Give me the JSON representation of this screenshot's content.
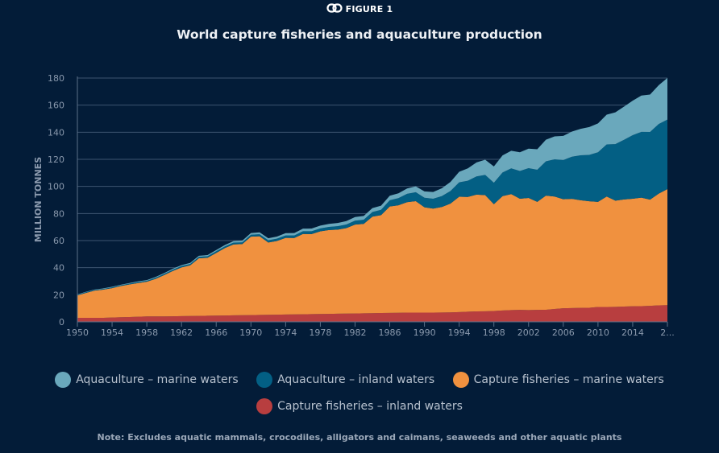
{
  "figure_label": "FIGURE 1",
  "figure_icon": "link-icon",
  "chart_data": {
    "type": "area",
    "stacked": true,
    "title": "World capture fisheries and aquaculture production",
    "xlabel": "",
    "ylabel": "MILLION TONNES",
    "ylim": [
      0,
      180
    ],
    "yticks": [
      "0",
      "20",
      "40",
      "60",
      "80",
      "100",
      "120",
      "140",
      "160",
      "180"
    ],
    "xlim": [
      1950,
      2018
    ],
    "xticks": [
      "1950",
      "1954",
      "1958",
      "1962",
      "1966",
      "1970",
      "1974",
      "1978",
      "1982",
      "1986",
      "1990",
      "1994",
      "1998",
      "2002",
      "2006",
      "2010",
      "2014",
      "2..."
    ],
    "grid": true,
    "legend_position": "bottom",
    "x": [
      1950,
      1951,
      1952,
      1953,
      1954,
      1955,
      1956,
      1957,
      1958,
      1959,
      1960,
      1961,
      1962,
      1963,
      1964,
      1965,
      1966,
      1967,
      1968,
      1969,
      1970,
      1971,
      1972,
      1973,
      1974,
      1975,
      1976,
      1977,
      1978,
      1979,
      1980,
      1981,
      1982,
      1983,
      1984,
      1985,
      1986,
      1987,
      1988,
      1989,
      1990,
      1991,
      1992,
      1993,
      1994,
      1995,
      1996,
      1997,
      1998,
      1999,
      2000,
      2001,
      2002,
      2003,
      2004,
      2005,
      2006,
      2007,
      2008,
      2009,
      2010,
      2011,
      2012,
      2013,
      2014,
      2015,
      2016,
      2017,
      2018
    ],
    "series": [
      {
        "name": "Capture fisheries – inland waters",
        "color": "#b83e3f",
        "values": [
          3,
          3,
          3,
          3,
          3.2,
          3.4,
          3.6,
          3.8,
          4,
          4,
          4,
          4.1,
          4.2,
          4.3,
          4.4,
          4.5,
          4.6,
          4.7,
          4.8,
          4.9,
          5,
          5.1,
          5.2,
          5.3,
          5.4,
          5.5,
          5.6,
          5.7,
          5.8,
          5.9,
          6,
          6.1,
          6.2,
          6.3,
          6.4,
          6.5,
          6.6,
          6.7,
          6.8,
          6.8,
          6.8,
          6.8,
          6.9,
          7,
          7.2,
          7.5,
          7.7,
          7.8,
          8,
          8.4,
          8.7,
          8.8,
          8.7,
          8.8,
          8.9,
          9.5,
          10,
          10.2,
          10.3,
          10.4,
          11,
          11,
          11.1,
          11.3,
          11.5,
          11.6,
          11.8,
          12.2,
          12.3
        ]
      },
      {
        "name": "Capture fisheries – marine waters",
        "color": "#f0913f",
        "values": [
          16.5,
          18.4,
          20.1,
          20.8,
          21.7,
          23,
          24,
          24.9,
          25.6,
          27.7,
          30.5,
          33.5,
          36,
          37.4,
          42.5,
          42.8,
          46.3,
          49.8,
          52.4,
          52.5,
          57.9,
          58.1,
          53.4,
          54.4,
          56.6,
          56.4,
          59.3,
          59.1,
          61,
          61.9,
          62.1,
          63.1,
          65.6,
          66,
          71.3,
          72.3,
          78.6,
          79.4,
          81.6,
          82.3,
          77.8,
          76.8,
          77.9,
          80.3,
          85.2,
          84.7,
          86.2,
          85.8,
          78.9,
          84.4,
          85.6,
          82.1,
          82.8,
          79.8,
          84.3,
          83,
          80.5,
          80.6,
          79.5,
          78.6,
          77.6,
          81.5,
          78.4,
          79.1,
          79.4,
          80.1,
          78.4,
          82.5,
          85.7
        ]
      },
      {
        "name": "Aquaculture – inland waters",
        "color": "#035f84",
        "values": [
          0.5,
          0.5,
          0.5,
          0.5,
          0.6,
          0.6,
          0.6,
          0.7,
          0.7,
          0.8,
          0.9,
          0.9,
          1,
          1,
          1.1,
          1.1,
          1.2,
          1.2,
          1.3,
          1.3,
          1.4,
          1.5,
          1.6,
          1.7,
          1.8,
          1.9,
          2,
          2.1,
          2.2,
          2.3,
          2.5,
          2.7,
          2.9,
          3.1,
          3.4,
          3.9,
          4.6,
          5.2,
          6.1,
          6.6,
          7,
          7.3,
          8,
          9.3,
          10.6,
          12,
          13.5,
          14.9,
          15.8,
          17.5,
          19,
          20.5,
          22,
          23.7,
          25.3,
          27.5,
          29,
          31.1,
          33.2,
          34.3,
          36.6,
          38.5,
          41.7,
          44,
          46.9,
          48.6,
          50,
          51.4,
          51.3
        ]
      },
      {
        "name": "Aquaculture – marine waters",
        "color": "#6aa8bc",
        "values": [
          0.3,
          0.3,
          0.3,
          0.4,
          0.4,
          0.4,
          0.5,
          0.5,
          0.5,
          0.6,
          0.6,
          0.7,
          0.7,
          0.8,
          0.8,
          0.9,
          0.9,
          1,
          1.1,
          1.2,
          1.3,
          1.4,
          1.5,
          1.6,
          1.7,
          1.8,
          1.9,
          2,
          2.1,
          2.2,
          2.4,
          2.5,
          2.7,
          2.8,
          2.9,
          3.1,
          3.3,
          3.6,
          4,
          4.3,
          4.7,
          5,
          5.8,
          6.7,
          7.8,
          9.1,
          10.3,
          11.2,
          12,
          12.6,
          13,
          13.8,
          14.4,
          15.1,
          16,
          16.9,
          17.8,
          18.6,
          19.5,
          20.5,
          21.3,
          22,
          23.5,
          24.5,
          25.5,
          26.8,
          27.6,
          28.6,
          30.8
        ]
      }
    ]
  },
  "legend": [
    {
      "label": "Aquaculture – marine waters",
      "color": "#6aa8bc"
    },
    {
      "label": "Aquaculture – inland waters",
      "color": "#035f84"
    },
    {
      "label": "Capture fisheries – marine waters",
      "color": "#f0913f"
    },
    {
      "label": "Capture fisheries – inland waters",
      "color": "#b83e3f"
    }
  ],
  "note": "Note: Excludes aquatic mammals, crocodiles, alligators and caimans, seaweeds and other aquatic plants"
}
